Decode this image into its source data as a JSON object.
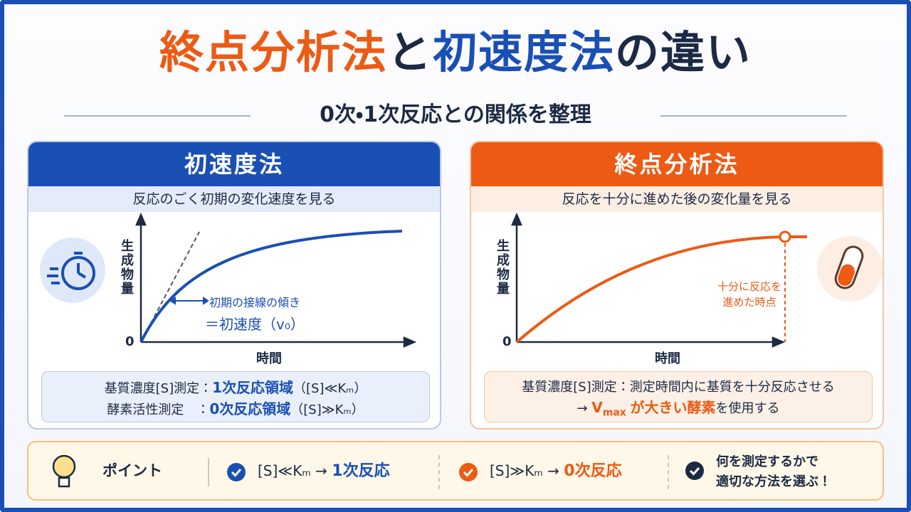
{
  "header": {
    "title": [
      "終点分析法",
      "と",
      "初速度法",
      "の違い"
    ],
    "subtitle": "0次・1次反応との関係を整理"
  },
  "panels": [
    {
      "title": "初速度法",
      "summary": "反応のごく初期の変化速度を見る",
      "chart": {
        "y_label": "生成物量",
        "x_label": "時間",
        "origin": "0",
        "annotation": [
          "初期の接線の傾き",
          "＝初速度（v₀）"
        ]
      },
      "notes": [
        [
          "基質濃度[S]測定：",
          "1次反応領域",
          "（[S]≪Kₘ）"
        ],
        [
          "酵素活性測定　：",
          "0次反応領域",
          "（[S]≫Kₘ）"
        ]
      ]
    },
    {
      "title": "終点分析法",
      "summary": "反応を十分に進めた後の変化量を見る",
      "chart": {
        "y_label": "生成物量",
        "x_label": "時間",
        "origin": "0",
        "annotation": [
          "十分に反応を",
          "進めた時点"
        ]
      },
      "notes": [
        [
          "基質濃度[S]測定：測定時間内に基質を十分反応させる"
        ],
        [
          "→ ",
          "V",
          "max",
          "が大きい酵素",
          "を使用する"
        ]
      ]
    }
  ],
  "points": {
    "label": "ポイント",
    "items": [
      [
        "[S]≪Kₘ → ",
        "1次反応"
      ],
      [
        "[S]≫Kₘ → ",
        "0次反応"
      ],
      [
        "何を測定するかで",
        "適切な方法を選ぶ！"
      ]
    ]
  }
}
